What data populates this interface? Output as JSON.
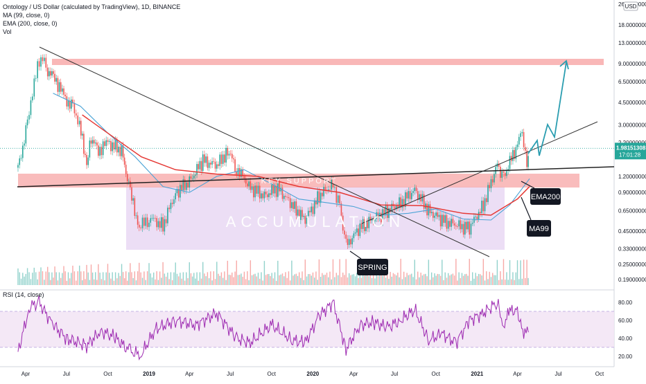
{
  "header": {
    "symbol_line": "Ontology / US Dollar (calculated by TradingView), 1D, BINANCE",
    "ma_line": "MA (99, close, 0)",
    "ema_line": "EMA (200, close, 0)",
    "vol_line": "Vol",
    "currency": "USD"
  },
  "rsi_panel": {
    "label": "RSI (14, close)"
  },
  "price_badge": {
    "price": "1.98151308",
    "timer": "17:01:28",
    "color": "#26a69a"
  },
  "annotations": {
    "key_support": "KEY SUPPORT",
    "accumulation": "ACCUMULATION",
    "spring": "SPRING",
    "ema200": "EMA200",
    "ma99": "MA99"
  },
  "colors": {
    "up": "#26a69a",
    "down": "#ef5350",
    "ma": "#4aa3d6",
    "ema": "#e53935",
    "rsi": "#9c27b0",
    "zone_red": "#f7a5a5",
    "zone_purple": "#e6d3f2",
    "arrow": "#2a9db0"
  },
  "chart_data": {
    "type": "candlestick",
    "price_scale": "log",
    "x_ticks": [
      "Apr",
      "Jul",
      "Oct",
      "2019",
      "Apr",
      "Jul",
      "Oct",
      "2020",
      "Apr",
      "Jul",
      "Oct",
      "2021",
      "Apr",
      "Jul",
      "Oct"
    ],
    "y_ticks": [
      "26.00000000",
      "18.00000000",
      "13.00000000",
      "9.00000000",
      "6.50000000",
      "4.50000000",
      "3.00000000",
      "2.20000000",
      "1.20000000",
      "0.90000000",
      "0.65000000",
      "0.45000000",
      "0.33000000",
      "0.25000000",
      "0.19000000"
    ],
    "rsi_ticks": [
      "80.00",
      "60.00",
      "40.00",
      "20.00"
    ],
    "rsi_band": [
      30,
      70
    ],
    "last_price": 1.98151308,
    "series": [
      {
        "name": "Price",
        "points": [
          [
            "2018-03-15",
            1.4
          ],
          [
            "2018-04-05",
            3.0
          ],
          [
            "2018-04-20",
            6.5
          ],
          [
            "2018-05-05",
            10.5
          ],
          [
            "2018-05-20",
            8.0
          ],
          [
            "2018-06-05",
            7.0
          ],
          [
            "2018-06-25",
            5.0
          ],
          [
            "2018-07-15",
            4.0
          ],
          [
            "2018-07-30",
            3.0
          ],
          [
            "2018-08-15",
            1.5
          ],
          [
            "2018-08-25",
            2.4
          ],
          [
            "2018-09-10",
            1.9
          ],
          [
            "2018-10-01",
            2.2
          ],
          [
            "2018-11-01",
            1.9
          ],
          [
            "2018-11-20",
            0.9
          ],
          [
            "2018-12-10",
            0.48
          ],
          [
            "2019-01-01",
            0.58
          ],
          [
            "2019-02-01",
            0.5
          ],
          [
            "2019-03-01",
            0.9
          ],
          [
            "2019-04-01",
            1.1
          ],
          [
            "2019-05-01",
            1.6
          ],
          [
            "2019-06-01",
            1.45
          ],
          [
            "2019-06-25",
            1.9
          ],
          [
            "2019-07-15",
            1.4
          ],
          [
            "2019-08-15",
            0.98
          ],
          [
            "2019-09-15",
            0.85
          ],
          [
            "2019-10-15",
            0.98
          ],
          [
            "2019-11-15",
            0.72
          ],
          [
            "2019-12-15",
            0.55
          ],
          [
            "2020-01-15",
            0.85
          ],
          [
            "2020-02-15",
            1.05
          ],
          [
            "2020-03-01",
            0.7
          ],
          [
            "2020-03-15",
            0.35
          ],
          [
            "2020-04-15",
            0.48
          ],
          [
            "2020-05-15",
            0.56
          ],
          [
            "2020-06-15",
            0.65
          ],
          [
            "2020-07-15",
            0.75
          ],
          [
            "2020-08-15",
            0.95
          ],
          [
            "2020-09-15",
            0.65
          ],
          [
            "2020-10-15",
            0.55
          ],
          [
            "2020-11-15",
            0.5
          ],
          [
            "2020-12-15",
            0.48
          ],
          [
            "2021-01-15",
            0.72
          ],
          [
            "2021-02-15",
            1.5
          ],
          [
            "2021-03-01",
            1.15
          ],
          [
            "2021-03-15",
            1.55
          ],
          [
            "2021-04-01",
            2.1
          ],
          [
            "2021-04-08",
            2.9
          ],
          [
            "2021-04-15",
            2.3
          ],
          [
            "2021-04-22",
            1.45
          ],
          [
            "2021-04-28",
            1.98
          ]
        ]
      },
      {
        "name": "MA (99, close, 0)",
        "points": [
          [
            "2018-06-01",
            5.3
          ],
          [
            "2018-08-01",
            4.2
          ],
          [
            "2018-10-01",
            2.6
          ],
          [
            "2018-12-01",
            1.7
          ],
          [
            "2019-02-01",
            1.0
          ],
          [
            "2019-04-01",
            0.9
          ],
          [
            "2019-06-01",
            1.2
          ],
          [
            "2019-08-01",
            1.35
          ],
          [
            "2019-10-01",
            1.05
          ],
          [
            "2019-12-01",
            0.8
          ],
          [
            "2020-02-01",
            0.75
          ],
          [
            "2020-04-01",
            0.7
          ],
          [
            "2020-06-01",
            0.6
          ],
          [
            "2020-08-01",
            0.62
          ],
          [
            "2020-10-01",
            0.67
          ],
          [
            "2020-12-01",
            0.56
          ],
          [
            "2021-02-01",
            0.55
          ],
          [
            "2021-03-15",
            0.72
          ],
          [
            "2021-04-28",
            1.15
          ]
        ]
      },
      {
        "name": "EMA (200, close, 0)",
        "points": [
          [
            "2018-08-05",
            3.6
          ],
          [
            "2018-10-15",
            2.4
          ],
          [
            "2018-12-15",
            1.7
          ],
          [
            "2019-03-01",
            1.35
          ],
          [
            "2019-06-01",
            1.25
          ],
          [
            "2019-09-01",
            1.2
          ],
          [
            "2019-12-01",
            1.0
          ],
          [
            "2020-03-01",
            0.9
          ],
          [
            "2020-06-01",
            0.72
          ],
          [
            "2020-09-01",
            0.71
          ],
          [
            "2020-12-01",
            0.62
          ],
          [
            "2021-02-01",
            0.6
          ],
          [
            "2021-04-01",
            0.8
          ],
          [
            "2021-04-28",
            1.0
          ]
        ]
      },
      {
        "name": "RSI (14, close)",
        "points": [
          [
            "2018-03-15",
            25
          ],
          [
            "2018-04-10",
            75
          ],
          [
            "2018-05-01",
            80
          ],
          [
            "2018-06-01",
            55
          ],
          [
            "2018-07-01",
            40
          ],
          [
            "2018-08-15",
            32
          ],
          [
            "2018-09-15",
            48
          ],
          [
            "2018-10-15",
            42
          ],
          [
            "2018-11-20",
            25
          ],
          [
            "2018-12-15",
            22
          ],
          [
            "2019-01-15",
            50
          ],
          [
            "2019-03-01",
            60
          ],
          [
            "2019-04-15",
            55
          ],
          [
            "2019-06-01",
            68
          ],
          [
            "2019-07-15",
            40
          ],
          [
            "2019-08-15",
            35
          ],
          [
            "2019-10-01",
            55
          ],
          [
            "2019-11-15",
            38
          ],
          [
            "2019-12-15",
            35
          ],
          [
            "2020-01-15",
            65
          ],
          [
            "2020-02-15",
            80
          ],
          [
            "2020-03-15",
            28
          ],
          [
            "2020-04-15",
            55
          ],
          [
            "2020-05-15",
            58
          ],
          [
            "2020-06-15",
            52
          ],
          [
            "2020-07-15",
            60
          ],
          [
            "2020-08-15",
            72
          ],
          [
            "2020-09-15",
            38
          ],
          [
            "2020-10-15",
            45
          ],
          [
            "2020-11-15",
            35
          ],
          [
            "2020-12-15",
            60
          ],
          [
            "2021-01-15",
            68
          ],
          [
            "2021-02-15",
            80
          ],
          [
            "2021-03-01",
            55
          ],
          [
            "2021-03-15",
            70
          ],
          [
            "2021-04-01",
            72
          ],
          [
            "2021-04-15",
            40
          ],
          [
            "2021-04-28",
            58
          ]
        ]
      }
    ]
  }
}
